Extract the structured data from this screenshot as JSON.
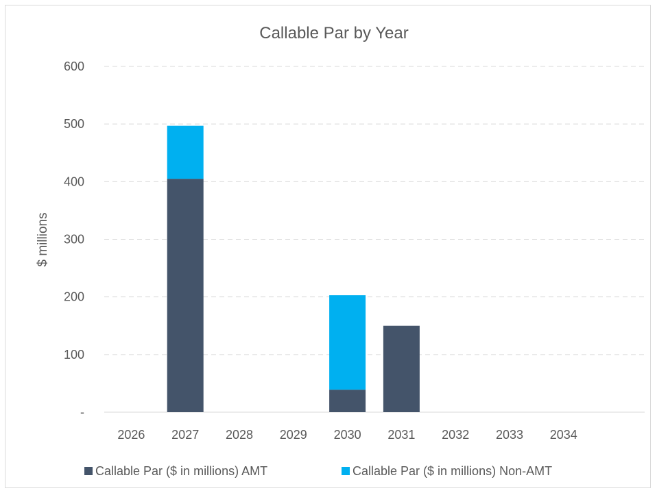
{
  "chart_data": {
    "type": "bar",
    "stacked": true,
    "title": "Callable Par by Year",
    "xlabel": "",
    "ylabel": "$ millions",
    "categories": [
      "2026",
      "2027",
      "2028",
      "2029",
      "2030",
      "2031",
      "2032",
      "2033",
      "2034"
    ],
    "series": [
      {
        "name": "Callable Par ($ in millions) AMT",
        "color": "#44546a",
        "values": [
          0,
          405,
          0,
          0,
          39,
          150,
          0,
          0,
          0
        ]
      },
      {
        "name": "Callable Par ($ in millions) Non-AMT",
        "color": "#00b0f0",
        "values": [
          0,
          92,
          0,
          0,
          164,
          0,
          0,
          0,
          0
        ]
      }
    ],
    "ylim": [
      0,
      600
    ],
    "yticks": [
      0,
      100,
      200,
      300,
      400,
      500,
      600
    ],
    "ytick_labels": [
      "-",
      "100",
      "200",
      "300",
      "400",
      "500",
      "600"
    ],
    "grid": true,
    "legend_position": "bottom"
  }
}
